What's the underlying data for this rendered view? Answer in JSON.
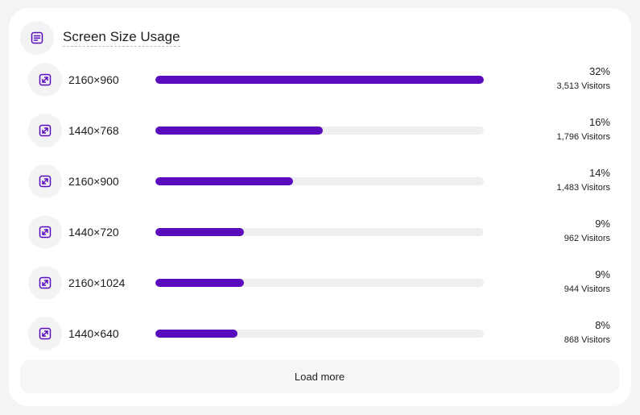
{
  "header": {
    "title": "Screen Size Usage",
    "icon": "document-lines-icon"
  },
  "colors": {
    "accent": "#5a0bbe",
    "track": "#efeff1",
    "icon_bg": "#f3f3f5"
  },
  "rows": [
    {
      "label": "2160×960",
      "percent": "32%",
      "visitors": "3,513 Visitors",
      "fill_percent": 100,
      "icon": "expand-arrows-icon"
    },
    {
      "label": "1440×768",
      "percent": "16%",
      "visitors": "1,796 Visitors",
      "fill_percent": 51,
      "icon": "expand-arrows-icon"
    },
    {
      "label": "2160×900",
      "percent": "14%",
      "visitors": "1,483 Visitors",
      "fill_percent": 42,
      "icon": "expand-arrows-icon"
    },
    {
      "label": "1440×720",
      "percent": "9%",
      "visitors": "962 Visitors",
      "fill_percent": 27,
      "icon": "expand-arrows-icon"
    },
    {
      "label": "2160×1024",
      "percent": "9%",
      "visitors": "944 Visitors",
      "fill_percent": 27,
      "icon": "expand-arrows-icon"
    },
    {
      "label": "1440×640",
      "percent": "8%",
      "visitors": "868 Visitors",
      "fill_percent": 25,
      "icon": "expand-arrows-icon"
    }
  ],
  "load_more_label": "Load more"
}
